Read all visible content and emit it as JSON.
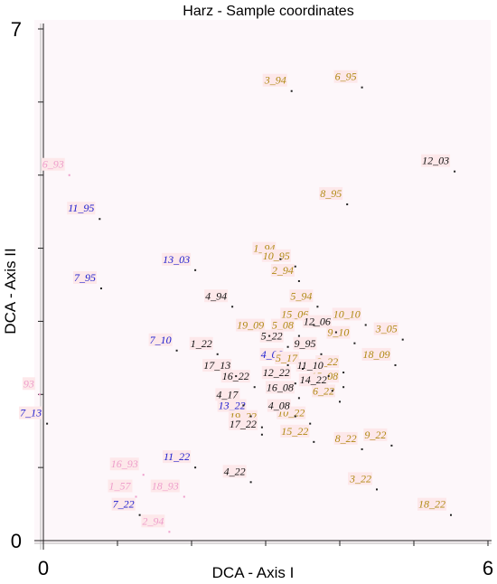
{
  "chart_data": {
    "type": "scatter",
    "title": "Harz - Sample coordinates",
    "xlabel": "DCA - Axis I",
    "ylabel": "DCA - Axis II",
    "xlim": [
      0,
      6
    ],
    "ylim": [
      0,
      7
    ],
    "x_tick_labels": [
      {
        "value": 0,
        "label": "0"
      },
      {
        "value": 6,
        "label": "6"
      }
    ],
    "y_tick_labels": [
      {
        "value": 0,
        "label": "0"
      },
      {
        "value": 7,
        "label": "7"
      }
    ],
    "grid": false,
    "colors": {
      "blue": "#1c1ccf",
      "gold": "#b08a14",
      "black": "#111111",
      "pink": "#ee9ecb",
      "label_bg": "#fde8ea",
      "plot_bg": "#fdf7fa"
    },
    "series": [
      {
        "color": "blue",
        "points": [
          {
            "label": "11_95",
            "x": 0.76,
            "y": 4.4
          },
          {
            "label": "13_03",
            "x": 2.05,
            "y": 3.7
          },
          {
            "label": "7_95",
            "x": 0.78,
            "y": 3.45
          },
          {
            "label": "7_10",
            "x": 1.8,
            "y": 2.6
          },
          {
            "label": "4_06",
            "x": 3.3,
            "y": 2.4
          },
          {
            "label": "13_22",
            "x": 2.8,
            "y": 1.7
          },
          {
            "label": "7_13",
            "x": 0.05,
            "y": 1.6
          },
          {
            "label": "11_22",
            "x": 2.05,
            "y": 1.0
          },
          {
            "label": "7_22",
            "x": 1.3,
            "y": 0.35
          }
        ]
      },
      {
        "color": "gold",
        "points": [
          {
            "label": "3_94",
            "x": 3.35,
            "y": 6.15
          },
          {
            "label": "6_95",
            "x": 4.3,
            "y": 6.2
          },
          {
            "label": "8_95",
            "x": 4.1,
            "y": 4.6
          },
          {
            "label": "1_94",
            "x": 3.2,
            "y": 3.85
          },
          {
            "label": "10_95",
            "x": 3.4,
            "y": 3.75
          },
          {
            "label": "2_94",
            "x": 3.45,
            "y": 3.55
          },
          {
            "label": "5_94",
            "x": 3.7,
            "y": 3.2
          },
          {
            "label": "15_06",
            "x": 3.65,
            "y": 2.95
          },
          {
            "label": "10_10",
            "x": 4.35,
            "y": 2.95
          },
          {
            "label": "5_08",
            "x": 3.45,
            "y": 2.8
          },
          {
            "label": "19_09",
            "x": 3.05,
            "y": 2.8
          },
          {
            "label": "9_10",
            "x": 4.2,
            "y": 2.7
          },
          {
            "label": "3_05",
            "x": 4.85,
            "y": 2.75
          },
          {
            "label": "18_09",
            "x": 4.75,
            "y": 2.4
          },
          {
            "label": "2_22",
            "x": 4.05,
            "y": 2.3
          },
          {
            "label": "5_17",
            "x": 3.5,
            "y": 2.35
          },
          {
            "label": "15_08",
            "x": 4.05,
            "y": 2.1
          },
          {
            "label": "6_22",
            "x": 4.0,
            "y": 1.9
          },
          {
            "label": "10_22",
            "x": 3.6,
            "y": 1.6
          },
          {
            "label": "19_22",
            "x": 2.95,
            "y": 1.55
          },
          {
            "label": "15_22",
            "x": 3.65,
            "y": 1.35
          },
          {
            "label": "9_22",
            "x": 4.7,
            "y": 1.3
          },
          {
            "label": "8_22",
            "x": 4.3,
            "y": 1.25
          },
          {
            "label": "3_22",
            "x": 4.5,
            "y": 0.7
          },
          {
            "label": "18_22",
            "x": 5.5,
            "y": 0.35
          }
        ]
      },
      {
        "color": "black",
        "points": [
          {
            "label": "12_03",
            "x": 5.55,
            "y": 5.05
          },
          {
            "label": "4_94",
            "x": 2.55,
            "y": 3.2
          },
          {
            "label": "12_06",
            "x": 3.95,
            "y": 2.85
          },
          {
            "label": "5_22",
            "x": 3.3,
            "y": 2.65
          },
          {
            "label": "9_95",
            "x": 3.75,
            "y": 2.55
          },
          {
            "label": "1_22",
            "x": 2.35,
            "y": 2.55
          },
          {
            "label": "17_13",
            "x": 2.6,
            "y": 2.25
          },
          {
            "label": "11_10",
            "x": 3.85,
            "y": 2.25
          },
          {
            "label": "12_22",
            "x": 3.4,
            "y": 2.15
          },
          {
            "label": "16_22",
            "x": 2.85,
            "y": 2.1
          },
          {
            "label": "14_22",
            "x": 3.9,
            "y": 2.05
          },
          {
            "label": "16_08",
            "x": 3.45,
            "y": 1.95
          },
          {
            "label": "4_17",
            "x": 2.7,
            "y": 1.85
          },
          {
            "label": "4_08",
            "x": 3.4,
            "y": 1.7
          },
          {
            "label": "17_22",
            "x": 2.95,
            "y": 1.45
          },
          {
            "label": "4_22",
            "x": 2.8,
            "y": 0.8
          }
        ]
      },
      {
        "color": "pink",
        "points": [
          {
            "label": "6_93",
            "x": 0.35,
            "y": 5.0
          },
          {
            "label": "16_93",
            "x": 1.35,
            "y": 0.9
          },
          {
            "label": "1_57",
            "x": 1.25,
            "y": 0.6
          },
          {
            "label": "18_93",
            "x": 1.9,
            "y": 0.6
          },
          {
            "label": "2_94",
            "x": 1.7,
            "y": 0.12
          },
          {
            "label": "93",
            "x": -0.05,
            "y": 2.0
          }
        ]
      }
    ]
  }
}
